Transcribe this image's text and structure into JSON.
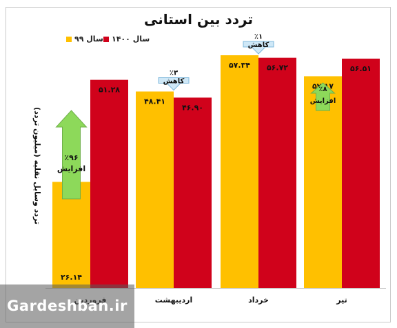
{
  "chart_data": {
    "type": "bar",
    "title": "تردد بین استانی",
    "ylabel": "تردد وسایل نقلیه (میلیون تردد)",
    "ylim": [
      0,
      65
    ],
    "categories": [
      "فروردین",
      "اردیبهشت",
      "خرداد",
      "تیر"
    ],
    "series": [
      {
        "name": "سال ۹۹",
        "color": "#FFC000",
        "values": [
          26.14,
          48.41,
          57.34,
          52.17
        ],
        "labels": [
          "۲۶.۱۴",
          "۴۸.۴۱",
          "۵۷.۳۴",
          "۵۲.۱۷"
        ]
      },
      {
        "name": "سال ۱۴۰۰",
        "color": "#D0021B",
        "values": [
          51.28,
          46.9,
          56.72,
          56.51
        ],
        "labels": [
          "۵۱.۲۸",
          "۴۶.۹۰",
          "۵۶.۷۲",
          "۵۶.۵۱"
        ]
      }
    ],
    "changes": [
      {
        "percent": "٪۹۶",
        "label": "افزایش",
        "direction": "up"
      },
      {
        "percent": "٪۳",
        "label": "کاهش",
        "direction": "down"
      },
      {
        "percent": "٪۱",
        "label": "کاهش",
        "direction": "down"
      },
      {
        "percent": "٪۸",
        "label": "افزایش",
        "direction": "up"
      }
    ],
    "grid": false,
    "legend": "top-left"
  },
  "watermark": "Gardeshban.ir"
}
